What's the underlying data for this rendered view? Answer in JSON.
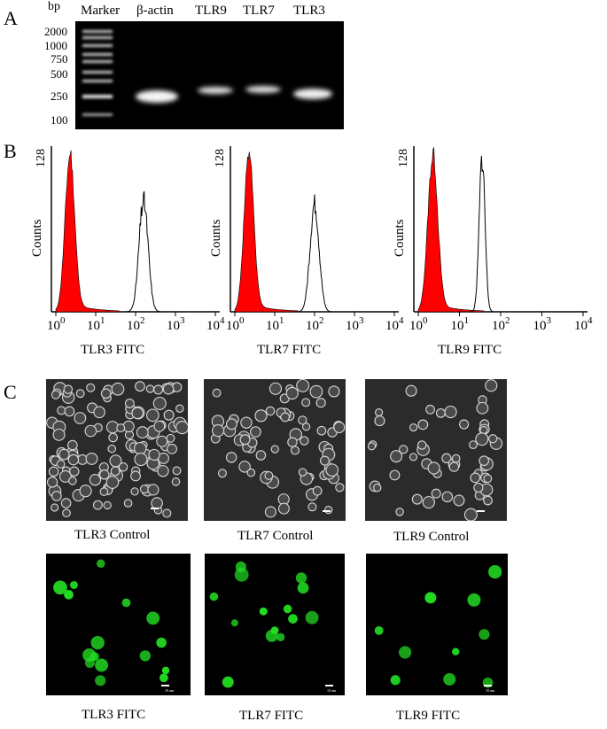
{
  "panelA": {
    "letter": "A",
    "bp_label": "bp",
    "lane_labels": [
      "Marker",
      "β-actin",
      "TLR9",
      "TLR7",
      "TLR3"
    ],
    "ladder": [
      "2000",
      "1000",
      "750",
      "500",
      "250",
      "100"
    ]
  },
  "panelB": {
    "letter": "B",
    "plots": [
      {
        "caption": "TLR3 FITC",
        "ymax": "128",
        "ylabel": "Counts",
        "xticks": [
          "10",
          "10",
          "10",
          "10",
          "10"
        ],
        "xexp": [
          "0",
          "1",
          "2",
          "3",
          "4"
        ]
      },
      {
        "caption": "TLR7 FITC",
        "ymax": "128",
        "ylabel": "Counts",
        "xticks": [
          "10",
          "10",
          "10",
          "10",
          "10"
        ],
        "xexp": [
          "0",
          "1",
          "2",
          "3",
          "4"
        ]
      },
      {
        "caption": "TLR9 FITC",
        "ymax": "128",
        "ylabel": "Counts",
        "xticks": [
          "10",
          "10",
          "10",
          "10",
          "10"
        ],
        "xexp": [
          "0",
          "1",
          "2",
          "3",
          "4"
        ]
      }
    ]
  },
  "panelC": {
    "letter": "C",
    "control_captions": [
      "TLR3 Control",
      "TLR7 Control",
      "TLR9 Control"
    ],
    "fitc_captions": [
      "TLR3 FITC",
      "TLR7 FITC",
      "TLR9 FITC"
    ],
    "scale_text": "10 um"
  },
  "colors": {
    "isotype_fill": "#ff0000",
    "fitc_cells": "#22dd22",
    "gel_background": "#000000"
  }
}
